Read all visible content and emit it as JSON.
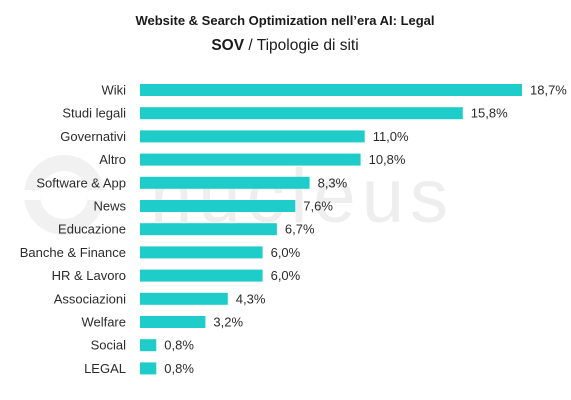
{
  "title": "Website & Search Optimization nell’era AI: Legal",
  "subtitle_bold": "SOV",
  "subtitle_rest": " / Tipologie di siti",
  "watermark": {
    "text": "nucleus",
    "color": "#eeeeee"
  },
  "colors": {
    "bar": "#1ecdc9",
    "text": "#2b2b2b"
  },
  "chart_data": {
    "type": "bar",
    "orientation": "horizontal",
    "title": "Website & Search Optimization nell’era AI: Legal",
    "subtitle": "SOV / Tipologie di siti",
    "categories": [
      "Wiki",
      "Studi legali",
      "Governativi",
      "Altro",
      "Software & App",
      "News",
      "Educazione",
      "Banche & Finance",
      "HR & Lavoro",
      "Associazioni",
      "Welfare",
      "Social",
      "LEGAL"
    ],
    "values": [
      18.7,
      15.8,
      11.0,
      10.8,
      8.3,
      7.6,
      6.7,
      6.0,
      6.0,
      4.3,
      3.2,
      0.8,
      0.8
    ],
    "value_labels": [
      "18,7%",
      "15,8%",
      "11,0%",
      "10,8%",
      "8,3%",
      "7,6%",
      "6,7%",
      "6,0%",
      "6,0%",
      "4,3%",
      "3,2%",
      "0,8%",
      "0,8%"
    ],
    "xlim": [
      0,
      18.7
    ],
    "unit": "%",
    "grid": false,
    "legend": "none",
    "axes_visible": false
  }
}
